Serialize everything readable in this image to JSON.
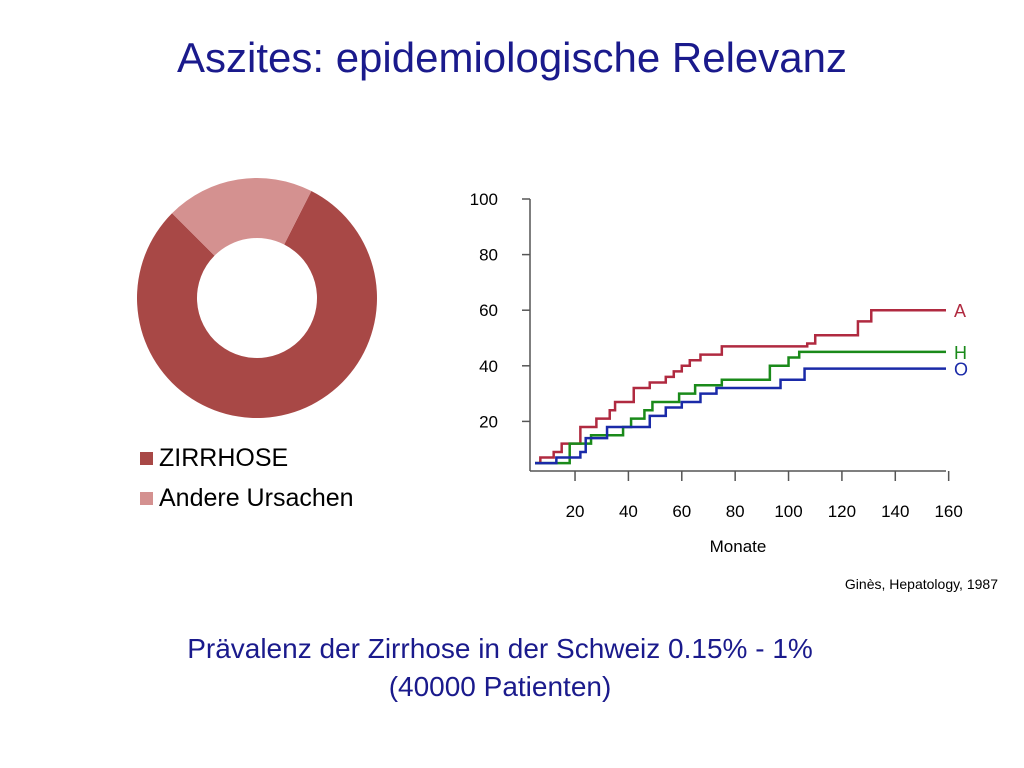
{
  "title": "Aszites: epidemiologische Relevanz",
  "citation": "Ginès, Hepatology, 1987",
  "footer": {
    "line1": "Prävalenz der Zirrhose in der Schweiz 0.15% - 1%",
    "line2": "(40000 Patienten)"
  },
  "chart_data": [
    {
      "type": "pie",
      "donut": true,
      "categories": [
        "ZIRRHOSE",
        "Andere Ursachen"
      ],
      "values": [
        80,
        20
      ],
      "colors": [
        "#a84846",
        "#d49190"
      ],
      "legend": "bottom"
    },
    {
      "type": "line",
      "step": true,
      "xlabel": "Monate",
      "ylabel": "",
      "xlim": [
        0,
        160
      ],
      "ylim": [
        0,
        100
      ],
      "xticks": [
        20,
        40,
        60,
        80,
        100,
        120,
        140,
        160
      ],
      "yticks": [
        20,
        40,
        60,
        80,
        100
      ],
      "grid": false,
      "series": [
        {
          "name": "A",
          "color": "#b02a40",
          "points": [
            [
              5,
              5
            ],
            [
              7,
              7
            ],
            [
              12,
              9
            ],
            [
              15,
              12
            ],
            [
              22,
              18
            ],
            [
              28,
              21
            ],
            [
              33,
              24
            ],
            [
              35,
              27
            ],
            [
              42,
              32
            ],
            [
              48,
              34
            ],
            [
              54,
              36
            ],
            [
              57,
              38
            ],
            [
              60,
              40
            ],
            [
              63,
              42
            ],
            [
              67,
              44
            ],
            [
              75,
              47
            ],
            [
              107,
              48
            ],
            [
              110,
              51
            ],
            [
              126,
              56
            ],
            [
              131,
              60
            ],
            [
              159,
              60
            ]
          ]
        },
        {
          "name": "H",
          "color": "#1a8a1a",
          "points": [
            [
              5,
              5
            ],
            [
              15,
              5
            ],
            [
              18,
              12
            ],
            [
              26,
              15
            ],
            [
              38,
              18
            ],
            [
              41,
              21
            ],
            [
              46,
              24
            ],
            [
              49,
              27
            ],
            [
              59,
              30
            ],
            [
              65,
              33
            ],
            [
              75,
              35
            ],
            [
              93,
              40
            ],
            [
              100,
              43
            ],
            [
              104,
              45
            ],
            [
              159,
              45
            ]
          ]
        },
        {
          "name": "O",
          "color": "#1a2aa8",
          "points": [
            [
              5,
              5
            ],
            [
              13,
              7
            ],
            [
              22,
              9
            ],
            [
              24,
              14
            ],
            [
              32,
              18
            ],
            [
              48,
              22
            ],
            [
              54,
              25
            ],
            [
              60,
              27
            ],
            [
              67,
              30
            ],
            [
              73,
              32
            ],
            [
              97,
              35
            ],
            [
              106,
              39
            ],
            [
              159,
              39
            ]
          ]
        }
      ]
    }
  ]
}
